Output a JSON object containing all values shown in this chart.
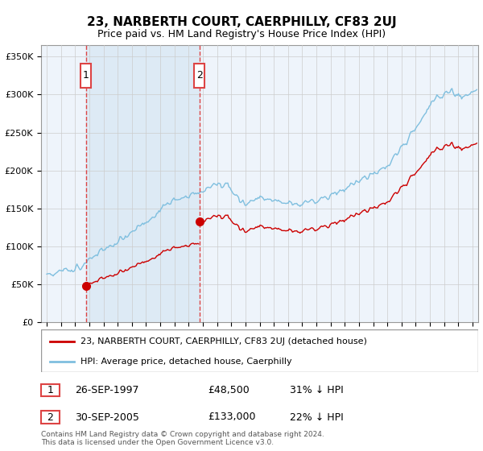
{
  "title": "23, NARBERTH COURT, CAERPHILLY, CF83 2UJ",
  "subtitle": "Price paid vs. HM Land Registry's House Price Index (HPI)",
  "ylabel_ticks": [
    "£0",
    "£50K",
    "£100K",
    "£150K",
    "£200K",
    "£250K",
    "£300K",
    "£350K"
  ],
  "ytick_values": [
    0,
    50000,
    100000,
    150000,
    200000,
    250000,
    300000,
    350000
  ],
  "ylim": [
    0,
    365000
  ],
  "xlim_start": 1994.6,
  "xlim_end": 2025.4,
  "sale1_date": 1997.75,
  "sale1_price": 48500,
  "sale2_date": 2005.75,
  "sale2_price": 133000,
  "hpi_color": "#7fbfdf",
  "sale_color": "#cc0000",
  "vline_color": "#dd4444",
  "shade_color": "#ddeaf5",
  "legend_sale_label": "23, NARBERTH COURT, CAERPHILLY, CF83 2UJ (detached house)",
  "legend_hpi_label": "HPI: Average price, detached house, Caerphilly",
  "info1_num": "1",
  "info1_date": "26-SEP-1997",
  "info1_price": "£48,500",
  "info1_hpi": "31% ↓ HPI",
  "info2_num": "2",
  "info2_date": "30-SEP-2005",
  "info2_price": "£133,000",
  "info2_hpi": "22% ↓ HPI",
  "footer": "Contains HM Land Registry data © Crown copyright and database right 2024.\nThis data is licensed under the Open Government Licence v3.0.",
  "background_color": "#eef4fb",
  "plot_bg": "#ffffff",
  "title_fontsize": 11,
  "subtitle_fontsize": 9
}
